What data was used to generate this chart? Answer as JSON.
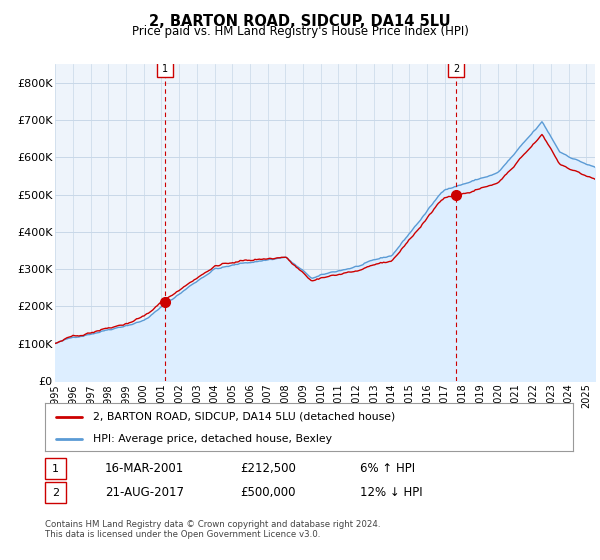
{
  "title": "2, BARTON ROAD, SIDCUP, DA14 5LU",
  "subtitle": "Price paid vs. HM Land Registry's House Price Index (HPI)",
  "ylim": [
    0,
    850000
  ],
  "yticks": [
    0,
    100000,
    200000,
    300000,
    400000,
    500000,
    600000,
    700000,
    800000
  ],
  "ytick_labels": [
    "£0",
    "£100K",
    "£200K",
    "£300K",
    "£400K",
    "£500K",
    "£600K",
    "£700K",
    "£800K"
  ],
  "sale1_year": 2001.21,
  "sale1_price": 212500,
  "sale2_year": 2017.64,
  "sale2_price": 500000,
  "hpi_color": "#5b9bd5",
  "hpi_fill_color": "#ddeeff",
  "price_color": "#cc0000",
  "vline_color": "#cc0000",
  "background_color": "#ffffff",
  "plot_bg_color": "#eef4fb",
  "grid_color": "#c8d8e8",
  "legend_entry1": "2, BARTON ROAD, SIDCUP, DA14 5LU (detached house)",
  "legend_entry2": "HPI: Average price, detached house, Bexley",
  "table_row1": [
    "1",
    "16-MAR-2001",
    "£212,500",
    "6% ↑ HPI"
  ],
  "table_row2": [
    "2",
    "21-AUG-2017",
    "£500,000",
    "12% ↓ HPI"
  ],
  "footnote": "Contains HM Land Registry data © Crown copyright and database right 2024.\nThis data is licensed under the Open Government Licence v3.0.",
  "xmin": 1995.0,
  "xmax": 2025.5
}
